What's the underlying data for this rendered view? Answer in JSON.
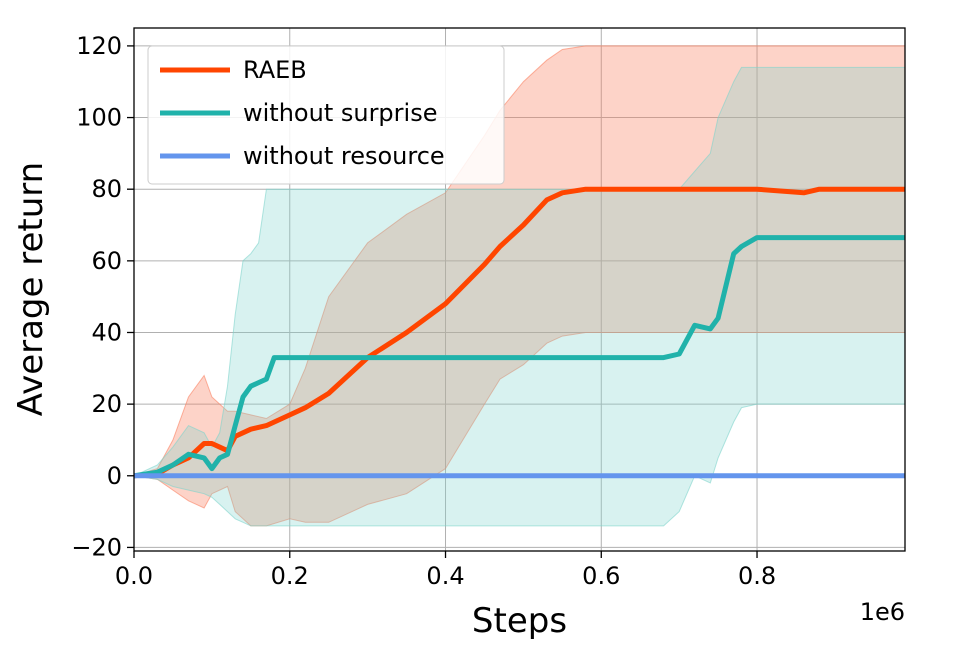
{
  "chart_data": {
    "type": "line",
    "xlabel": "Steps",
    "ylabel": "Average return",
    "x_offset_label": "1e6",
    "xlim": [
      0.0,
      0.99
    ],
    "ylim": [
      -21,
      125
    ],
    "xticks": [
      {
        "value": 0.0,
        "label": "0.0"
      },
      {
        "value": 0.2,
        "label": "0.2"
      },
      {
        "value": 0.4,
        "label": "0.4"
      },
      {
        "value": 0.6,
        "label": "0.6"
      },
      {
        "value": 0.8,
        "label": "0.8"
      }
    ],
    "yticks": [
      {
        "value": -20,
        "label": "−20"
      },
      {
        "value": 0,
        "label": "0"
      },
      {
        "value": 20,
        "label": "20"
      },
      {
        "value": 40,
        "label": "40"
      },
      {
        "value": 60,
        "label": "60"
      },
      {
        "value": 80,
        "label": "80"
      },
      {
        "value": 100,
        "label": "100"
      },
      {
        "value": 120,
        "label": "120"
      }
    ],
    "grid": true,
    "legend_position": "top-left",
    "series": [
      {
        "name": "RAEB",
        "color": "#ff4500",
        "band_color": "#fa8060",
        "x": [
          0.0,
          0.03,
          0.05,
          0.07,
          0.09,
          0.1,
          0.12,
          0.13,
          0.15,
          0.17,
          0.2,
          0.22,
          0.25,
          0.3,
          0.35,
          0.4,
          0.45,
          0.47,
          0.5,
          0.53,
          0.55,
          0.58,
          0.6,
          0.7,
          0.8,
          0.86,
          0.88,
          0.99
        ],
        "values": [
          0.0,
          0.5,
          3.0,
          5.0,
          9.0,
          9.0,
          7.0,
          11.0,
          13.0,
          14.0,
          17.0,
          19.0,
          23.0,
          33.0,
          40.0,
          48.0,
          59.0,
          64.0,
          70.0,
          77.0,
          79.0,
          80.0,
          80.0,
          80.0,
          80.0,
          79.0,
          80.0,
          80.0
        ],
        "upper": [
          0.0,
          2.0,
          10.0,
          22.0,
          28.0,
          22.0,
          18.0,
          18.0,
          17.0,
          16.0,
          20.0,
          30.0,
          50.0,
          65.0,
          73.0,
          79.0,
          95.0,
          102.0,
          110.0,
          116.0,
          119.0,
          120.0,
          120.0,
          120.0,
          120.0,
          120.0,
          120.0,
          120.0
        ],
        "lower": [
          0.0,
          -1.0,
          -4.0,
          -7.0,
          -9.0,
          -5.0,
          -3.0,
          -10.0,
          -14.0,
          -14.0,
          -12.0,
          -13.0,
          -13.0,
          -8.0,
          -5.0,
          2.0,
          20.0,
          27.0,
          31.0,
          37.0,
          39.0,
          40.0,
          40.0,
          40.0,
          40.0,
          40.0,
          40.0,
          40.0
        ]
      },
      {
        "name": "without surprise",
        "color": "#20b2aa",
        "band_color": "#7fd4cc",
        "x": [
          0.0,
          0.03,
          0.05,
          0.07,
          0.09,
          0.1,
          0.11,
          0.12,
          0.13,
          0.14,
          0.15,
          0.16,
          0.17,
          0.18,
          0.2,
          0.5,
          0.68,
          0.7,
          0.72,
          0.74,
          0.75,
          0.77,
          0.78,
          0.8,
          0.99
        ],
        "values": [
          0.0,
          1.0,
          3.0,
          6.0,
          5.0,
          2.0,
          5.0,
          6.0,
          14.0,
          22.0,
          25.0,
          26.0,
          27.0,
          33.0,
          33.0,
          33.0,
          33.0,
          34.0,
          42.0,
          41.0,
          44.0,
          62.0,
          64.0,
          66.5,
          66.5
        ],
        "upper": [
          0.0,
          3.0,
          8.0,
          14.0,
          12.0,
          8.0,
          12.0,
          25.0,
          45.0,
          60.0,
          62.0,
          65.0,
          80.0,
          80.0,
          80.0,
          80.0,
          80.0,
          80.0,
          85.0,
          90.0,
          100.0,
          110.0,
          114.0,
          114.0,
          114.0
        ],
        "lower": [
          0.0,
          -1.0,
          -3.0,
          -4.0,
          -5.0,
          -6.0,
          -8.0,
          -10.0,
          -12.0,
          -13.0,
          -14.0,
          -14.0,
          -14.0,
          -14.0,
          -14.0,
          -14.0,
          -14.0,
          -10.0,
          0.0,
          -2.0,
          5.0,
          15.0,
          19.0,
          20.0,
          20.0
        ]
      },
      {
        "name": "without resource",
        "color": "#6495ed",
        "band_color": "#6495ed",
        "x": [
          0.0,
          0.1,
          0.2,
          0.4,
          0.6,
          0.8,
          0.99
        ],
        "values": [
          0.0,
          0.0,
          0.0,
          0.0,
          0.0,
          0.0,
          0.0
        ],
        "upper": [
          0.0,
          0.0,
          0.0,
          0.0,
          0.0,
          0.0,
          0.0
        ],
        "lower": [
          0.0,
          0.0,
          0.0,
          0.0,
          0.0,
          0.0,
          0.0
        ]
      }
    ]
  }
}
